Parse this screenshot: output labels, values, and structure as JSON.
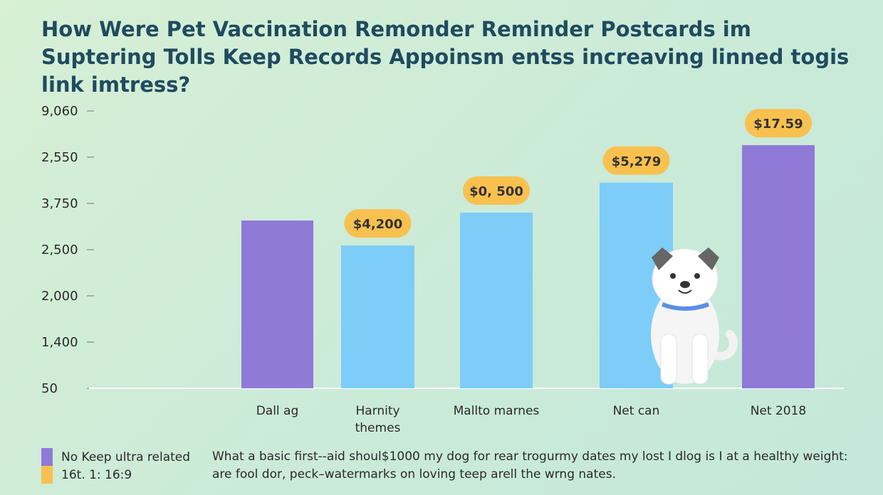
{
  "chart_data": {
    "type": "bar",
    "title": "How Were Pet Vaccination Remonder Reminder Postcards im Suptering Tolls Keep Records Appoinsm entss increaving linned togis link imtress?",
    "categories": [
      "Dall ag",
      "Harnity\nthemes",
      "Mallto marnes",
      "Net can",
      "Net 2018"
    ],
    "values": [
      3.63,
      3.09,
      3.8,
      4.45,
      5.26
    ],
    "colors": [
      "#8f7ad8",
      "#7dcdf8",
      "#7dcdf8",
      "#7dcdf8",
      "#8f7ad8"
    ],
    "badges": [
      null,
      "$4,200",
      "$0, 500",
      "$5,279",
      "$17.59"
    ],
    "badge_color": "#f8c14f",
    "ylim": [
      0,
      6
    ],
    "yticks": [
      {
        "value": 0,
        "label": "50"
      },
      {
        "value": 1,
        "label": "1,400"
      },
      {
        "value": 2,
        "label": "2,000"
      },
      {
        "value": 3,
        "label": "2,500"
      },
      {
        "value": 4,
        "label": "3,750"
      },
      {
        "value": 5,
        "label": "2,550"
      },
      {
        "value": 6,
        "label": "9,060"
      }
    ],
    "legend": [
      {
        "name": "No Keep ultra related",
        "color": "#8f7ad8"
      },
      {
        "name": "16t. 1: 16:9",
        "color": "#f8c14f"
      }
    ],
    "footnote": [
      "What a basic first--aid shoul$1000 my dog for rear trogurmy dates my lost I dlog is I at a healthy weight:",
      "are fool dor, peck–watermarks on loving teep arell the wrng nates."
    ]
  }
}
